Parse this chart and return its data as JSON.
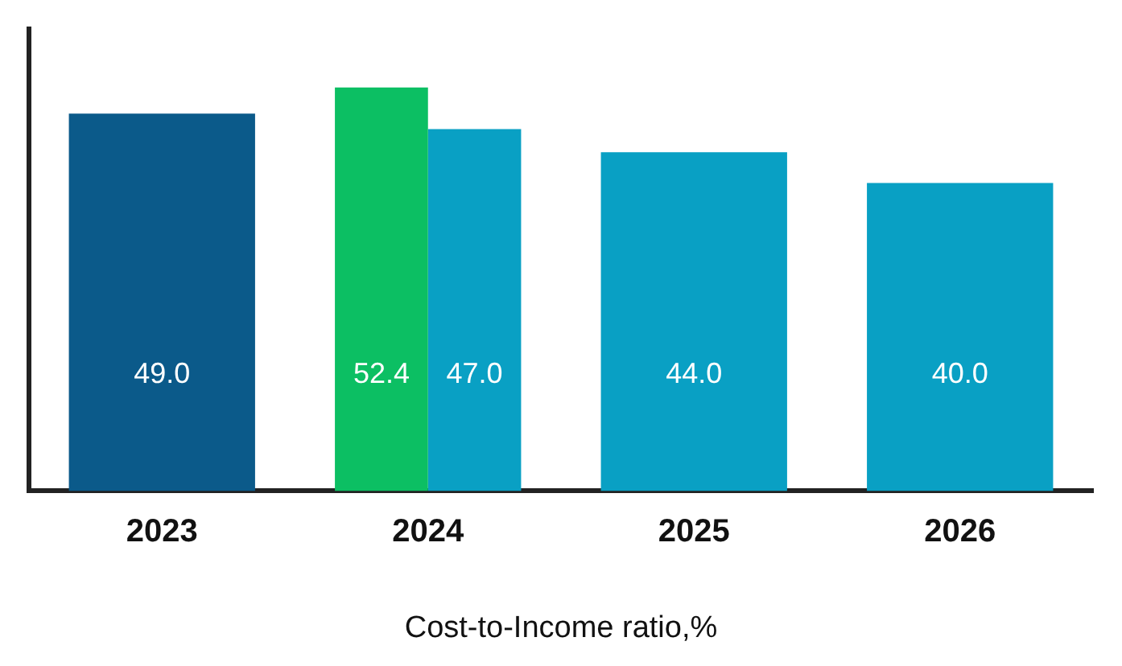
{
  "chart_data": {
    "type": "bar",
    "xlabel": "Cost-to-Income ratio,%",
    "categories": [
      "2023",
      "2024",
      "2025",
      "2026"
    ],
    "series": [
      {
        "color": "#0cbf63",
        "values": [
          null,
          52.4,
          null,
          null
        ],
        "value_labels": [
          null,
          "52.4",
          null,
          null
        ]
      },
      {
        "colors": [
          "#0b5a8a",
          "#09a0c4",
          "#09a0c4",
          "#09a0c4"
        ],
        "values": [
          49.0,
          47.0,
          44.0,
          40.0
        ],
        "value_labels": [
          "49.0",
          "47.0",
          "44.0",
          "40.0"
        ]
      }
    ],
    "grid": false,
    "legend": false
  }
}
